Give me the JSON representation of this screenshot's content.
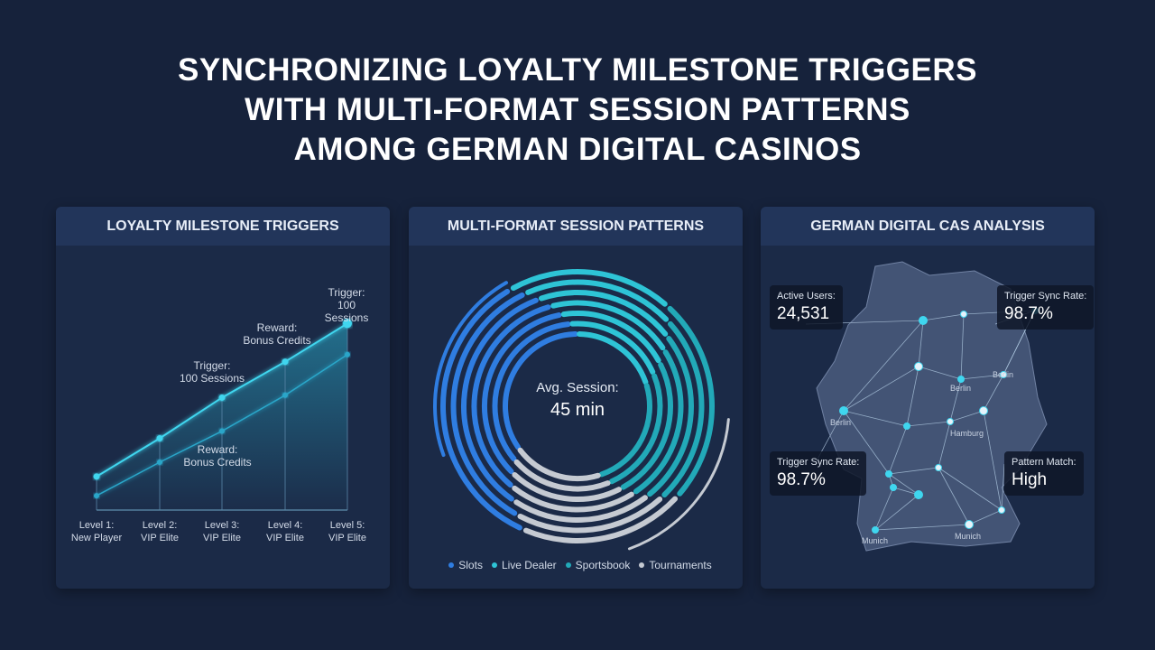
{
  "title": "SYNCHRONIZING LOYALTY MILESTONE TRIGGERS\nWITH MULTI-FORMAT SESSION PATTERNS\nAMONG GERMAN DIGITAL CASINOS",
  "chart_data": [
    {
      "type": "line",
      "title": "LOYALTY MILESTONE TRIGGERS",
      "categories": [
        "Level 1:\nNew Player",
        "Level 2:\nVIP Elite",
        "Level 3:\nVIP Elite",
        "Level 4:\nVIP Elite",
        "Level 5:\nVIP Elite"
      ],
      "series": [
        {
          "color": "#3fd6ef",
          "values": [
            14,
            30,
            47,
            62,
            78
          ]
        },
        {
          "color": "#2aa6c9",
          "values": [
            6,
            20,
            33,
            48,
            65
          ]
        }
      ],
      "ylim": [
        0,
        100
      ],
      "annotations": [
        "Trigger:\n100 Sessions",
        "Reward:\nBonus Credits",
        "Trigger:\n100 Sessions",
        "Reward:\nBonus Credits"
      ]
    },
    {
      "type": "donut",
      "title": "MULTI-FORMAT SESSION PATTERNS",
      "center_label": "Avg. Session:",
      "center_value": "45 min",
      "series": [
        {
          "name": "Slots",
          "color": "#2f7de1",
          "values": [
            35
          ]
        },
        {
          "name": "Live Dealer",
          "color": "#2ec4d6",
          "values": [
            20
          ]
        },
        {
          "name": "Sportsbook",
          "color": "#22a9b8",
          "values": [
            25
          ]
        },
        {
          "name": "Tournaments",
          "color": "#c5cad2",
          "values": [
            20
          ]
        }
      ]
    }
  ],
  "map": {
    "title": "GERMAN DIGITAL CAS ANALYSIS",
    "stats": [
      {
        "label": "Active Users:",
        "value": "24,531"
      },
      {
        "label": "Trigger Sync Rate:",
        "value": "98.7%"
      },
      {
        "label": "Trigger Sync Rate:",
        "value": "98.7%"
      },
      {
        "label": "Pattern Match:",
        "value": "High"
      }
    ],
    "cities": [
      "Berlin",
      "Berlin",
      "Berlin",
      "Hamburg",
      "Munich",
      "Munich"
    ]
  }
}
